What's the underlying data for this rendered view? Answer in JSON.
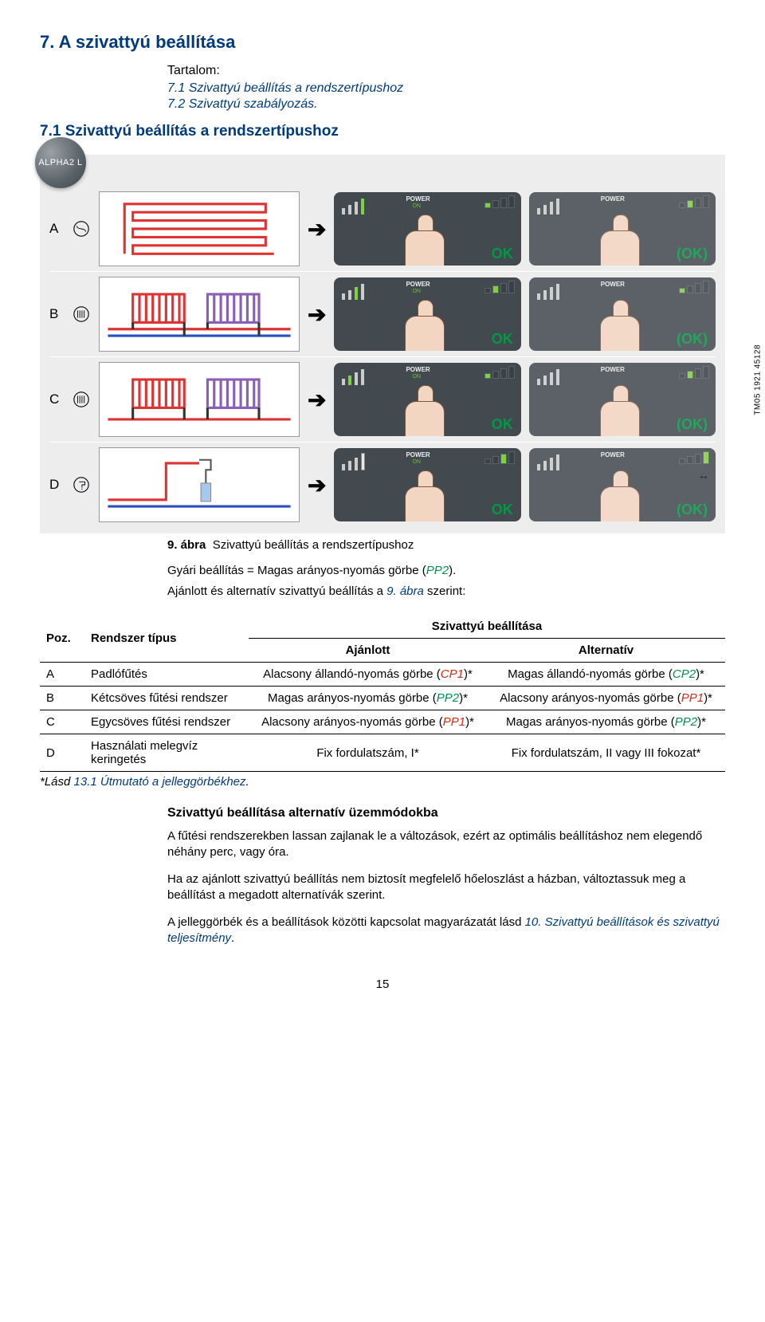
{
  "section": {
    "title": "7. A szivattyú beállítása",
    "contents_label": "Tartalom:",
    "contents": [
      "7.1 Szivattyú beállítás a rendszertípushoz",
      "7.2 Szivattyú szabályozás."
    ],
    "subsection_title": "7.1 Szivattyú beállítás a rendszertípushoz"
  },
  "figure": {
    "badge": "ALPHA2 L",
    "rows": [
      {
        "letter": "A",
        "ok1": "OK",
        "ok2": "(OK)"
      },
      {
        "letter": "B",
        "ok1": "OK",
        "ok2": "(OK)"
      },
      {
        "letter": "C",
        "ok1": "OK",
        "ok2": "(OK)"
      },
      {
        "letter": "D",
        "ok1": "OK",
        "ok2": "(OK)"
      }
    ],
    "power_label": "POWER",
    "on_label": "ON",
    "code": "TM05 1921 45128",
    "caption_num": "9. ábra",
    "caption_text": "Szivattyú beállítás a rendszertípushoz"
  },
  "intro": {
    "line1_a": "Gyári beállítás = Magas arányos-nyomás görbe (",
    "line1_code": "PP2",
    "line1_b": ").",
    "line2_a": "Ajánlott és alternatív szivattyú beállítás a ",
    "line2_link": "9. ábra",
    "line2_b": " szerint:"
  },
  "table": {
    "header_poz": "Poz.",
    "header_type": "Rendszer típus",
    "header_settings": "Szivattyú beállítása",
    "header_rec": "Ajánlott",
    "header_alt": "Alternatív",
    "rows": [
      {
        "poz": "A",
        "type": "Padlófűtés",
        "rec_a": "Alacsony állandó-nyomás görbe (",
        "rec_code": "CP1",
        "rec_class": "curve1",
        "rec_b": ")*",
        "alt_a": "Magas állandó-nyomás görbe (",
        "alt_code": "CP2",
        "alt_class": "curve2",
        "alt_b": ")*"
      },
      {
        "poz": "B",
        "type": "Kétcsöves fűtési rendszer",
        "rec_a": "Magas arányos-nyomás görbe (",
        "rec_code": "PP2",
        "rec_class": "curve2",
        "rec_b": ")*",
        "alt_a": "Alacsony arányos-nyomás görbe (",
        "alt_code": "PP1",
        "alt_class": "curve1",
        "alt_b": ")*"
      },
      {
        "poz": "C",
        "type": "Egycsöves fűtési rendszer",
        "rec_a": "Alacsony arányos-nyomás görbe (",
        "rec_code": "PP1",
        "rec_class": "curve1",
        "rec_b": ")*",
        "alt_a": "Magas arányos-nyomás görbe (",
        "alt_code": "PP2",
        "alt_class": "curve2",
        "alt_b": ")*"
      },
      {
        "poz": "D",
        "type": "Használati melegvíz keringetés",
        "rec_a": "Fix fordulatszám, I*",
        "rec_code": "",
        "rec_class": "",
        "rec_b": "",
        "alt_a": "Fix fordulatszám, II vagy III fokozat*",
        "alt_code": "",
        "alt_class": "",
        "alt_b": ""
      }
    ],
    "footnote_a": "*Lásd ",
    "footnote_link": "13.1 Útmutató a jelleggörbékhez",
    "footnote_b": "."
  },
  "paragraphs": {
    "subhead": "Szivattyú beállítása alternatív üzemmódokba",
    "p1": "A fűtési rendszerekben lassan zajlanak le a változások, ezért az optimális beállításhoz nem elegendő néhány perc, vagy óra.",
    "p2": "Ha az ajánlott szivattyú beállítás nem biztosít megfelelő hőeloszlást a házban, változtassuk meg a beállítást a megadott alternatívák szerint.",
    "p3_a": "A jelleggörbék és a beállítások közötti kapcsolat magyarázatát lásd ",
    "p3_link": "10. Szivattyú beállítások és szivattyú teljesítmény",
    "p3_b": "."
  },
  "page_number": "15",
  "colors": {
    "brand_blue": "#003a7a",
    "green": "#009a46",
    "red_curve": "#c82f18",
    "green_curve": "#00904c",
    "panel_bg": "#42494f",
    "fig_bg": "#ededed"
  }
}
